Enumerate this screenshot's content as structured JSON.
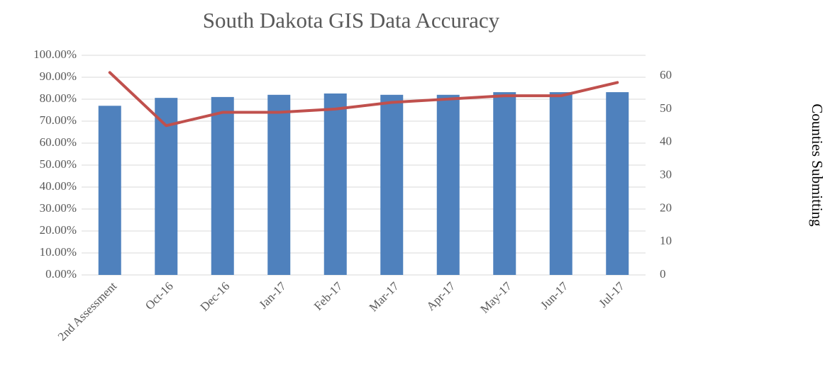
{
  "chart_data": {
    "type": "bar_line",
    "title": "South Dakota GIS Data Accuracy",
    "y2_label": "Counties Submitting",
    "categories": [
      "2nd Assessment",
      "Oct-16",
      "Dec-16",
      "Jan-17",
      "Feb-17",
      "Mar-17",
      "Apr-17",
      "May-17",
      "Jun-17",
      "Jul-17"
    ],
    "series": [
      {
        "type": "bar",
        "color": "#4f81bd",
        "values": [
          77,
          80.6,
          81,
          82,
          82.6,
          82,
          82,
          83.2,
          83.2,
          83.2
        ]
      },
      {
        "type": "line",
        "axis": "y2",
        "color": "#c0504d",
        "values": [
          61,
          45,
          49,
          49,
          50,
          52,
          53,
          54,
          54,
          58
        ]
      }
    ],
    "ylim": [
      0,
      100
    ],
    "yticks": [
      {
        "value": 0,
        "label": "0.00%"
      },
      {
        "value": 10,
        "label": "10.00%"
      },
      {
        "value": 20,
        "label": "20.00%"
      },
      {
        "value": 30,
        "label": "30.00%"
      },
      {
        "value": 40,
        "label": "40.00%"
      },
      {
        "value": 50,
        "label": "50.00%"
      },
      {
        "value": 60,
        "label": "60.00%"
      },
      {
        "value": 70,
        "label": "70.00%"
      },
      {
        "value": 80,
        "label": "80.00%"
      },
      {
        "value": 90,
        "label": "90.00%"
      },
      {
        "value": 100,
        "label": "100.00%"
      }
    ],
    "y2lim": [
      0,
      66.2
    ],
    "y2ticks": [
      0,
      10,
      20,
      30,
      40,
      50,
      60
    ],
    "grid": true
  }
}
